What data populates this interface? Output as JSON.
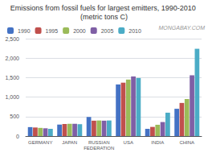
{
  "chart_data": {
    "type": "bar",
    "title": "Emissions from fossil fuels for largest emitters, 1990-2010 (metric tons C)",
    "annotation": "MONGABAY.COM",
    "categories": [
      "GERMANY",
      "JAPAN",
      "RUSSIAN\nFEDERATION",
      "USA",
      "INDIA",
      "CHINA"
    ],
    "series": [
      {
        "name": "1990",
        "color": "#4472c4",
        "values": [
          230,
          295,
          490,
          1325,
          185,
          700
        ]
      },
      {
        "name": "1995",
        "color": "#c0504d",
        "values": [
          220,
          310,
          395,
          1370,
          235,
          850
        ]
      },
      {
        "name": "2000",
        "color": "#9bbb59",
        "values": [
          210,
          315,
          400,
          1450,
          290,
          950
        ]
      },
      {
        "name": "2005",
        "color": "#7f5fa5",
        "values": [
          200,
          315,
          395,
          1530,
          360,
          1560
        ]
      },
      {
        "name": "2010",
        "color": "#4bacc6",
        "values": [
          185,
          305,
          400,
          1490,
          600,
          2240
        ]
      }
    ],
    "ylim": [
      0,
      2500
    ],
    "yticks": [
      0,
      500,
      1000,
      1500,
      2000,
      2500
    ],
    "grid": true,
    "legend": "top"
  }
}
